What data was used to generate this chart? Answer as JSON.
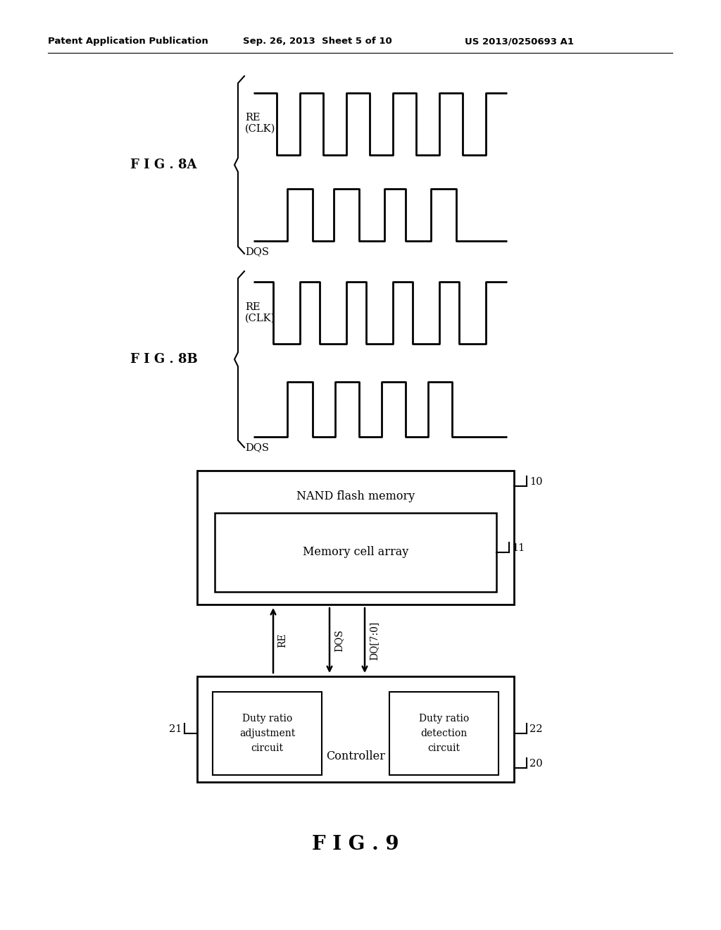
{
  "bg_color": "#ffffff",
  "header_left": "Patent Application Publication",
  "header_mid": "Sep. 26, 2013  Sheet 5 of 10",
  "header_right": "US 2013/0250693 A1",
  "fig8a_label": "F I G . 8A",
  "fig8b_label": "F I G . 8B",
  "fig9_label": "F I G . 9",
  "re_clk_label": "RE\n(CLK)",
  "dqs_label": "DQS",
  "nand_label": "NAND flash memory",
  "nand_ref": "10",
  "mca_label": "Memory cell array",
  "mca_ref": "11",
  "controller_label": "Controller",
  "controller_ref": "20",
  "duty_adj_label": "Duty ratio\nadjustment\ncircuit",
  "duty_adj_ref": "21",
  "duty_det_label": "Duty ratio\ndetection\ncircuit",
  "duty_det_ref": "22",
  "re_wire_label": "RE",
  "dqs_wire_label": "DQS",
  "dq_wire_label": "DQ[7:0]"
}
